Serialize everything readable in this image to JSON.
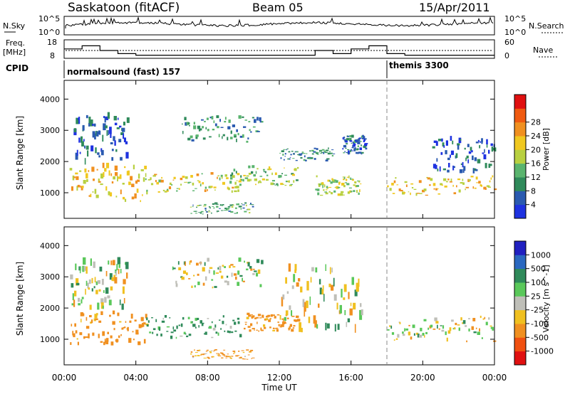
{
  "header": {
    "radar": "Saskatoon (fitACF)",
    "beam": "Beam 05",
    "date": "15/Apr/2011"
  },
  "noise_panel": {
    "left_label": "N.Sky",
    "right_label": "N.Search",
    "left_ticks": [
      "10^5",
      "10^0"
    ],
    "right_ticks": [
      "10^5",
      "10^0"
    ]
  },
  "freq_panel": {
    "left_label_1": "Freq.",
    "left_label_2": "[MHz]",
    "right_label": "Nave",
    "left_ticks": [
      "18",
      "8"
    ],
    "right_ticks": [
      "60",
      "0"
    ]
  },
  "cpid": {
    "label": "CPID",
    "modes": [
      {
        "name": "normalsound (fast) 157",
        "start_hour": 0.0
      },
      {
        "name": "themis 3300",
        "start_hour": 18.0
      }
    ]
  },
  "chart_data": [
    {
      "type": "heatmap",
      "quantity": "Power",
      "ylabel": "Slant Range [km]",
      "ylim": [
        180,
        4600
      ],
      "yticks": [
        1000,
        2000,
        3000,
        4000
      ],
      "colorbar": {
        "label": "Power [dB]",
        "ticks": [
          "4",
          "8",
          "12",
          "16",
          "20",
          "24",
          "28"
        ],
        "colors": [
          "#1e32e0",
          "#2a5ab0",
          "#2f8a5a",
          "#5ab46e",
          "#b8d040",
          "#f0c820",
          "#f09020",
          "#f05a10",
          "#e01010"
        ]
      },
      "regions": [
        {
          "t": [
            0.3,
            4.6
          ],
          "r": [
            700,
            1800
          ],
          "value": 22
        },
        {
          "t": [
            0.5,
            3.5
          ],
          "r": [
            1900,
            3400
          ],
          "value": 6
        },
        {
          "t": [
            4.5,
            9.8
          ],
          "r": [
            1000,
            1600
          ],
          "value": 20
        },
        {
          "t": [
            6.5,
            11.0
          ],
          "r": [
            2600,
            3400
          ],
          "value": 10
        },
        {
          "t": [
            7.0,
            10.5
          ],
          "r": [
            300,
            650
          ],
          "value": 12
        },
        {
          "t": [
            9.2,
            13.0
          ],
          "r": [
            1200,
            1800
          ],
          "value": 16
        },
        {
          "t": [
            12.0,
            15.0
          ],
          "r": [
            2000,
            2400
          ],
          "value": 10
        },
        {
          "t": [
            14.0,
            16.5
          ],
          "r": [
            900,
            1500
          ],
          "value": 18
        },
        {
          "t": [
            15.5,
            16.8
          ],
          "r": [
            2200,
            2800
          ],
          "value": 8
        },
        {
          "t": [
            18.0,
            24.0
          ],
          "r": [
            900,
            1500
          ],
          "value": 22
        },
        {
          "t": [
            20.5,
            24.0
          ],
          "r": [
            1600,
            2700
          ],
          "value": 6
        }
      ]
    },
    {
      "type": "heatmap",
      "quantity": "Velocity",
      "ylabel": "Slant Range [km]",
      "xlabel": "Time UT",
      "xticks": [
        "00:00",
        "04:00",
        "08:00",
        "12:00",
        "16:00",
        "20:00",
        "00:00"
      ],
      "xlim": [
        0,
        24
      ],
      "ylim": [
        180,
        4600
      ],
      "yticks": [
        1000,
        2000,
        3000,
        4000
      ],
      "colorbar": {
        "label": "Velocity [m s^-1]",
        "ticks": [
          "1000",
          "500",
          "100",
          "25",
          "-25",
          "-100",
          "-500",
          "-1000"
        ],
        "colors": [
          "#2020c0",
          "#2a68c0",
          "#2f8a5a",
          "#5ac85a",
          "#bfbfb8",
          "#f0c020",
          "#f09020",
          "#f05010",
          "#e01010"
        ]
      },
      "regions": [
        {
          "t": [
            0.3,
            4.6
          ],
          "r": [
            800,
            1800
          ],
          "value": -200
        },
        {
          "t": [
            0.3,
            3.5
          ],
          "r": [
            1900,
            3400
          ],
          "value": 0
        },
        {
          "t": [
            4.5,
            9.8
          ],
          "r": [
            1000,
            1700
          ],
          "value": 150
        },
        {
          "t": [
            6.0,
            11.0
          ],
          "r": [
            2600,
            3500
          ],
          "value": 0
        },
        {
          "t": [
            7.0,
            10.5
          ],
          "r": [
            350,
            650
          ],
          "value": -150
        },
        {
          "t": [
            10.0,
            13.0
          ],
          "r": [
            1200,
            1800
          ],
          "value": -200
        },
        {
          "t": [
            12.0,
            16.6
          ],
          "r": [
            1200,
            3200
          ],
          "value": 0
        },
        {
          "t": [
            18.0,
            24.0
          ],
          "r": [
            900,
            1700
          ],
          "value": 0
        }
      ]
    }
  ]
}
